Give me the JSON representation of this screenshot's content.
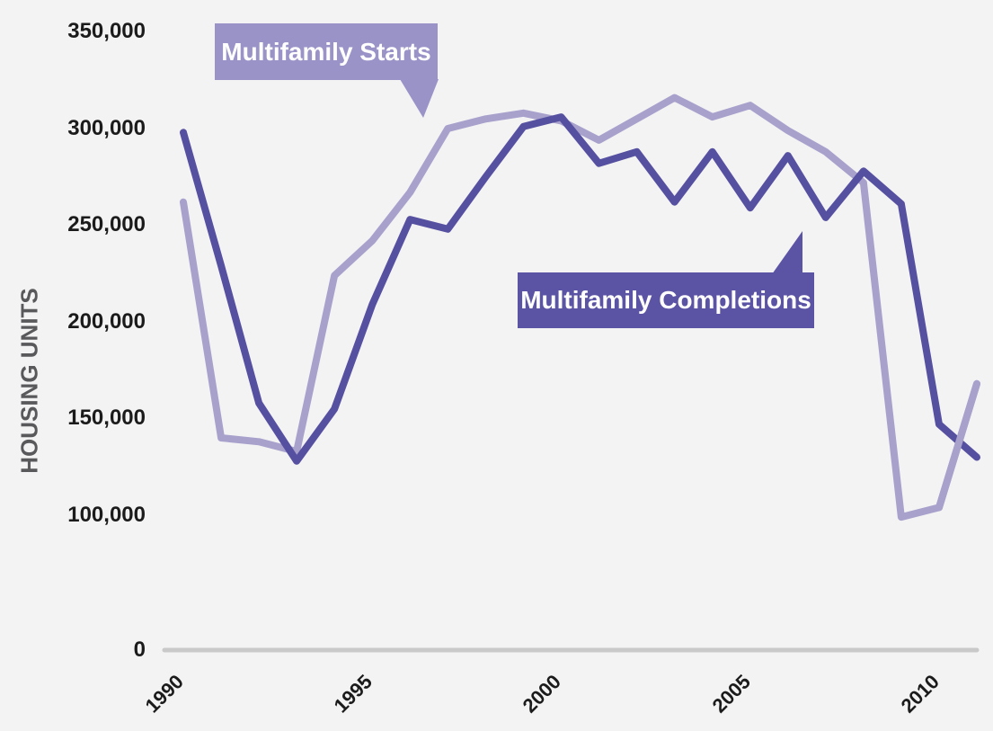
{
  "chart_data": {
    "type": "line",
    "title": "",
    "ylabel": "HOUSING UNITS",
    "xlabel": "",
    "x_years": [
      1990,
      1991,
      1992,
      1993,
      1994,
      1995,
      1996,
      1997,
      1998,
      1999,
      2000,
      2001,
      2002,
      2003,
      2004,
      2005,
      2006,
      2007,
      2008,
      2009,
      2010,
      2011
    ],
    "series": [
      {
        "name": "Multifamily Starts",
        "color": "#a7a1cc",
        "label_box_color": "#9a93c7",
        "values_units": [
          262000,
          140000,
          138000,
          133000,
          224000,
          242000,
          267000,
          300000,
          305000,
          308000,
          304000,
          294000,
          305000,
          316000,
          306000,
          312000,
          299000,
          288000,
          272000,
          99000,
          104000,
          168000
        ]
      },
      {
        "name": "Multifamily Completions",
        "color": "#5650a0",
        "label_box_color": "#5b53a4",
        "values_units": [
          298000,
          229000,
          158000,
          128000,
          155000,
          209000,
          253000,
          248000,
          275000,
          301000,
          306000,
          282000,
          288000,
          262000,
          288000,
          259000,
          286000,
          254000,
          278000,
          261000,
          147000,
          130000
        ]
      }
    ],
    "y_tick_labels": [
      "350,000",
      "300,000",
      "250,000",
      "200,000",
      "150,000",
      "100,000",
      "0"
    ],
    "x_tick_labels": [
      "1990",
      "1995",
      "2000",
      "2005",
      "2010"
    ],
    "ylim": [
      0,
      350000
    ],
    "grid": "off",
    "legend": "callout-labels",
    "axis_break_below": 100000
  },
  "colors": {
    "background": "#f3f3f4",
    "baseline": "#c9c9c9",
    "tick_text": "#1b1b1b",
    "axis_title_text": "#59595b",
    "callout_text": "#ffffff"
  }
}
